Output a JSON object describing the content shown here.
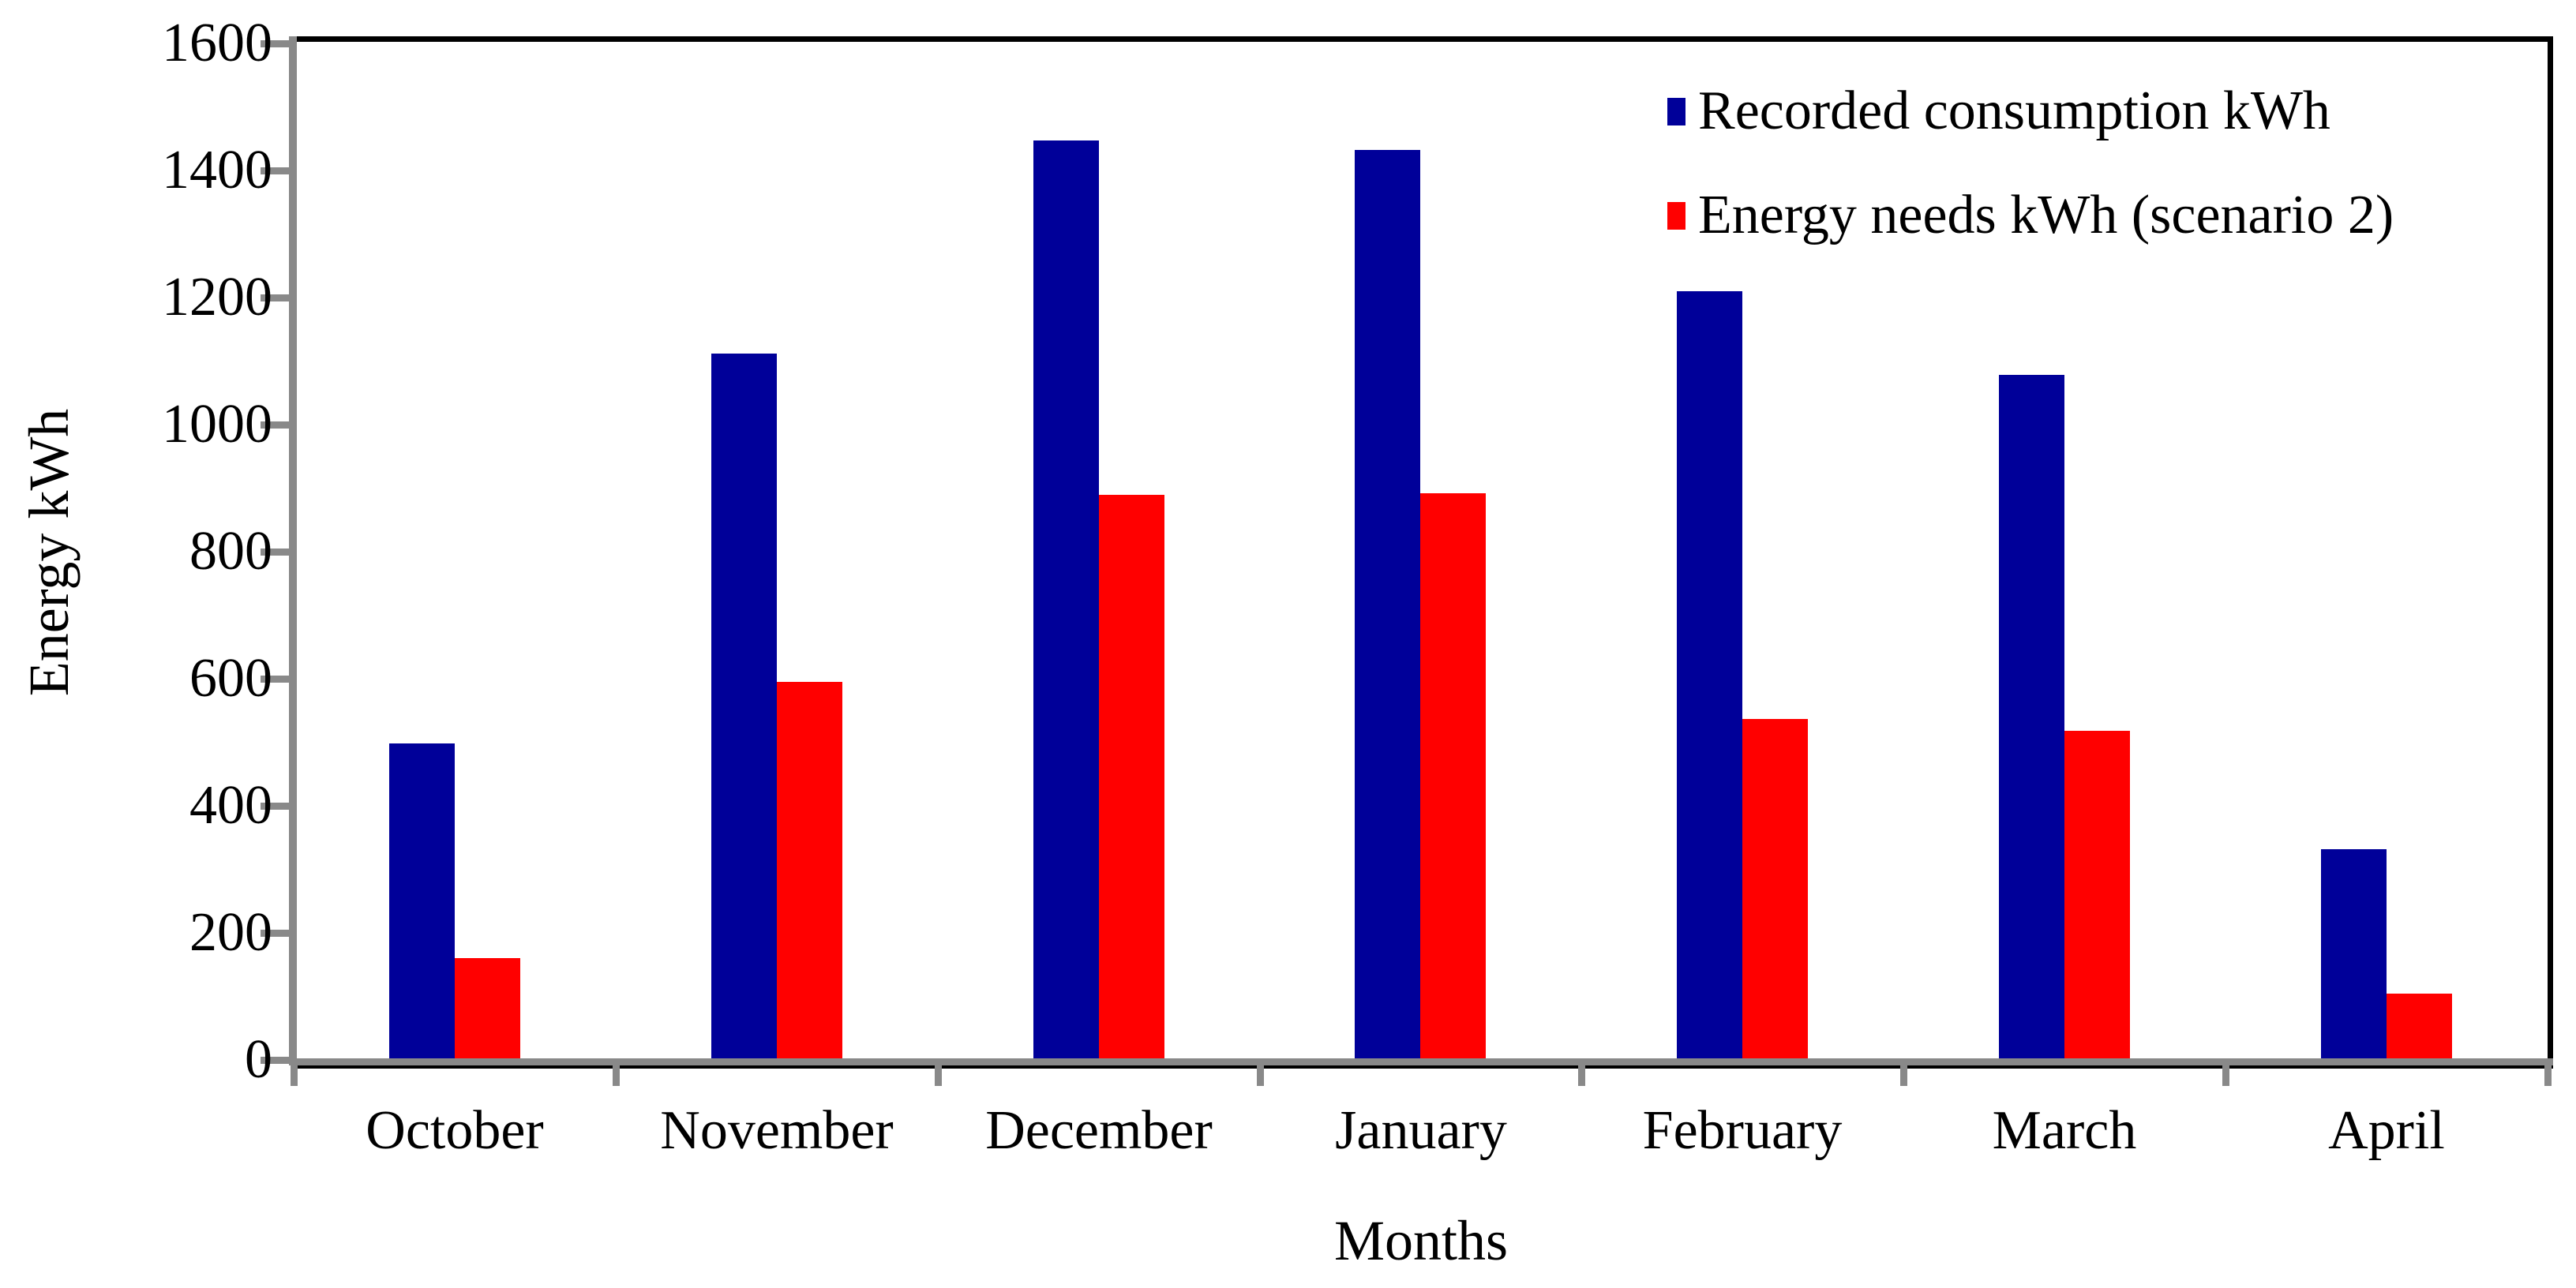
{
  "chart_data": {
    "type": "bar",
    "categories": [
      "October",
      "November",
      "December",
      "January",
      "February",
      "March",
      "April"
    ],
    "series": [
      {
        "name": "Recorded consumption kWh",
        "color": "#000099",
        "values": [
          498,
          1112,
          1447,
          1432,
          1210,
          1078,
          332
        ]
      },
      {
        "name": "Energy needs kWh (scenario 2)",
        "color": "#FF0000",
        "values": [
          160,
          595,
          890,
          892,
          537,
          518,
          104
        ]
      }
    ],
    "title": "",
    "xlabel": "Months",
    "ylabel": "Energy kWh",
    "ylim": [
      0,
      1600
    ],
    "ytick_interval": 200,
    "ytick_labels": [
      "0",
      "200",
      "400",
      "600",
      "800",
      "1000",
      "1200",
      "1400",
      "1600"
    ],
    "legend_position": "top-right",
    "grid": false,
    "axis_color": "#898989",
    "frame_color": "#000000",
    "background": "#FFFFFF"
  }
}
